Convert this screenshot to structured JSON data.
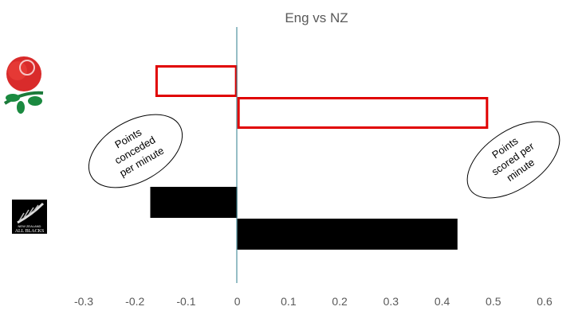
{
  "chart_data": {
    "type": "bar",
    "orientation": "horizontal",
    "title": "Eng vs NZ",
    "categories": [
      "England",
      "New Zealand"
    ],
    "series": [
      {
        "values": [
          -0.16,
          -0.17
        ]
      },
      {
        "values": [
          0.49,
          0.43
        ]
      }
    ],
    "colors": {
      "England": "#e00000",
      "New Zealand": "#000000"
    },
    "england_style": "outline",
    "nz_style": "filled",
    "xlim": [
      -0.3,
      0.6
    ],
    "xticks": [
      "-0.3",
      "-0.2",
      "-0.1",
      "0",
      "0.1",
      "0.2",
      "0.3",
      "0.4",
      "0.5",
      "0.6"
    ],
    "grid": false,
    "annotations": {
      "left": [
        "Points",
        "conceded",
        "per minute"
      ],
      "right": [
        "Points",
        "scored per",
        "minute"
      ]
    },
    "logos": {
      "england": "rose-logo",
      "nz": "NEW ZEALAND ALL BLACKS"
    }
  }
}
